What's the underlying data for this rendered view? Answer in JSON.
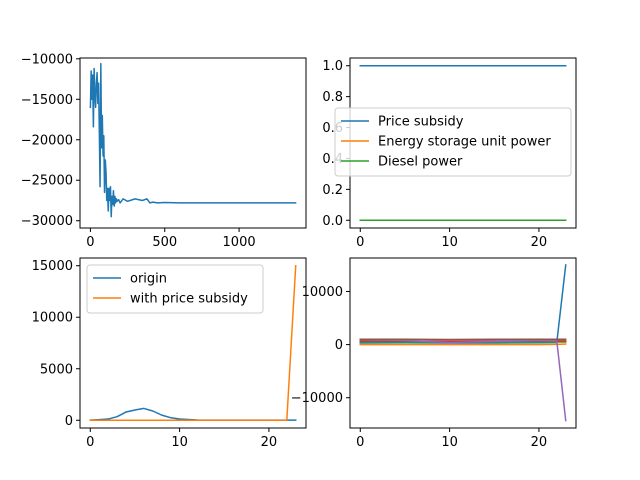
{
  "chart_data": [
    {
      "type": "line",
      "xlim": [
        -70,
        1450
      ],
      "ylim": [
        -30900,
        -9900
      ],
      "xticks": [
        0,
        500,
        1000
      ],
      "yticks": [
        -30000,
        -25000,
        -20000,
        -15000,
        -10000
      ],
      "series": [
        {
          "color": "#1f77b4",
          "x": [
            0,
            5,
            10,
            15,
            20,
            25,
            30,
            35,
            40,
            45,
            50,
            55,
            60,
            65,
            70,
            75,
            80,
            85,
            90,
            95,
            100,
            105,
            110,
            115,
            120,
            125,
            130,
            135,
            140,
            145,
            150,
            155,
            160,
            165,
            170,
            175,
            180,
            190,
            200,
            220,
            250,
            300,
            350,
            380,
            400,
            420,
            450,
            500,
            600,
            800,
            1000,
            1200,
            1380
          ],
          "y": [
            -16000,
            -11500,
            -15000,
            -12000,
            -18400,
            -11200,
            -14500,
            -16000,
            -13000,
            -11700,
            -15500,
            -13000,
            -19000,
            -25800,
            -10600,
            -21000,
            -17000,
            -22000,
            -19500,
            -26500,
            -22500,
            -24000,
            -27500,
            -26000,
            -28800,
            -26000,
            -27500,
            -25800,
            -29500,
            -27000,
            -28000,
            -26300,
            -28200,
            -27000,
            -27800,
            -27300,
            -27600,
            -27400,
            -27800,
            -27300,
            -27600,
            -27300,
            -27500,
            -27300,
            -27800,
            -27700,
            -27800,
            -27750,
            -27800,
            -27800,
            -27800,
            -27800,
            -27800
          ]
        }
      ]
    },
    {
      "type": "line",
      "xlim": [
        -1.15,
        24.15
      ],
      "ylim": [
        -0.05,
        1.05
      ],
      "xticks": [
        0,
        10,
        20
      ],
      "yticks": [
        0.0,
        0.2,
        0.4,
        0.6,
        0.8,
        1.0
      ],
      "ytick_labels": [
        "0.0",
        "0.2",
        "0.4",
        "0.6",
        "0.8",
        "1.0"
      ],
      "legend": {
        "placement": "center-right",
        "entries": [
          "Price subsidy",
          "Energy storage unit power",
          "Diesel power"
        ]
      },
      "series": [
        {
          "name": "Price subsidy",
          "color": "#1f77b4",
          "x": [
            0,
            23
          ],
          "y": [
            1.0,
            1.0
          ]
        },
        {
          "name": "Energy storage unit power",
          "color": "#ff7f0e",
          "x": [
            0,
            23
          ],
          "y": [
            0.0,
            0.0
          ]
        },
        {
          "name": "Diesel power",
          "color": "#2ca02c",
          "x": [
            0,
            23
          ],
          "y": [
            0.0,
            0.0
          ]
        }
      ]
    },
    {
      "type": "line",
      "xlim": [
        -1.15,
        24.15
      ],
      "ylim": [
        -750,
        15750
      ],
      "xticks": [
        0,
        10,
        20
      ],
      "yticks": [
        0,
        5000,
        10000,
        15000
      ],
      "legend": {
        "placement": "upper-left",
        "entries": [
          "origin",
          "with price subsidy"
        ]
      },
      "series": [
        {
          "name": "origin",
          "color": "#1f77b4",
          "x": [
            0,
            1,
            2,
            3,
            4,
            5,
            6,
            7,
            8,
            9,
            10,
            11,
            12,
            13,
            14,
            15,
            16,
            17,
            18,
            19,
            20,
            21,
            22,
            23
          ],
          "y": [
            20,
            60,
            120,
            350,
            800,
            1000,
            1150,
            900,
            500,
            250,
            120,
            80,
            30,
            20,
            15,
            10,
            10,
            10,
            10,
            10,
            10,
            10,
            10,
            10
          ]
        },
        {
          "name": "with price subsidy",
          "color": "#ff7f0e",
          "x": [
            0,
            1,
            2,
            3,
            4,
            5,
            6,
            7,
            8,
            9,
            10,
            11,
            12,
            13,
            14,
            15,
            16,
            17,
            18,
            19,
            20,
            21,
            22,
            23
          ],
          "y": [
            0,
            0,
            0,
            0,
            0,
            0,
            0,
            0,
            0,
            0,
            0,
            0,
            0,
            0,
            0,
            0,
            0,
            0,
            0,
            0,
            0,
            0,
            0,
            15000
          ]
        }
      ]
    },
    {
      "type": "line",
      "xlim": [
        -1.15,
        24.15
      ],
      "ylim": [
        -15700,
        16300
      ],
      "xticks": [
        0,
        10,
        20
      ],
      "yticks": [
        -10000,
        0,
        10000
      ],
      "series": [
        {
          "color": "#1f77b4",
          "x": [
            0,
            5,
            10,
            15,
            20,
            22,
            23
          ],
          "y": [
            300,
            350,
            300,
            300,
            350,
            400,
            15000
          ]
        },
        {
          "color": "#ff7f0e",
          "x": [
            0,
            5,
            10,
            15,
            20,
            22,
            23
          ],
          "y": [
            0,
            0,
            0,
            0,
            0,
            50,
            100
          ]
        },
        {
          "color": "#2ca02c",
          "x": [
            0,
            5,
            10,
            15,
            20,
            22,
            23
          ],
          "y": [
            500,
            500,
            450,
            500,
            500,
            500,
            500
          ]
        },
        {
          "color": "#d62728",
          "x": [
            0,
            5,
            10,
            15,
            20,
            22,
            23
          ],
          "y": [
            700,
            700,
            650,
            700,
            700,
            700,
            700
          ]
        },
        {
          "color": "#9467bd",
          "x": [
            0,
            5,
            10,
            15,
            20,
            22,
            23
          ],
          "y": [
            900,
            800,
            400,
            600,
            800,
            700,
            -14300
          ]
        },
        {
          "color": "#8c564b",
          "x": [
            0,
            5,
            10,
            15,
            20,
            22,
            23
          ],
          "y": [
            1000,
            1000,
            950,
            1000,
            1000,
            1000,
            1000
          ]
        }
      ]
    }
  ]
}
